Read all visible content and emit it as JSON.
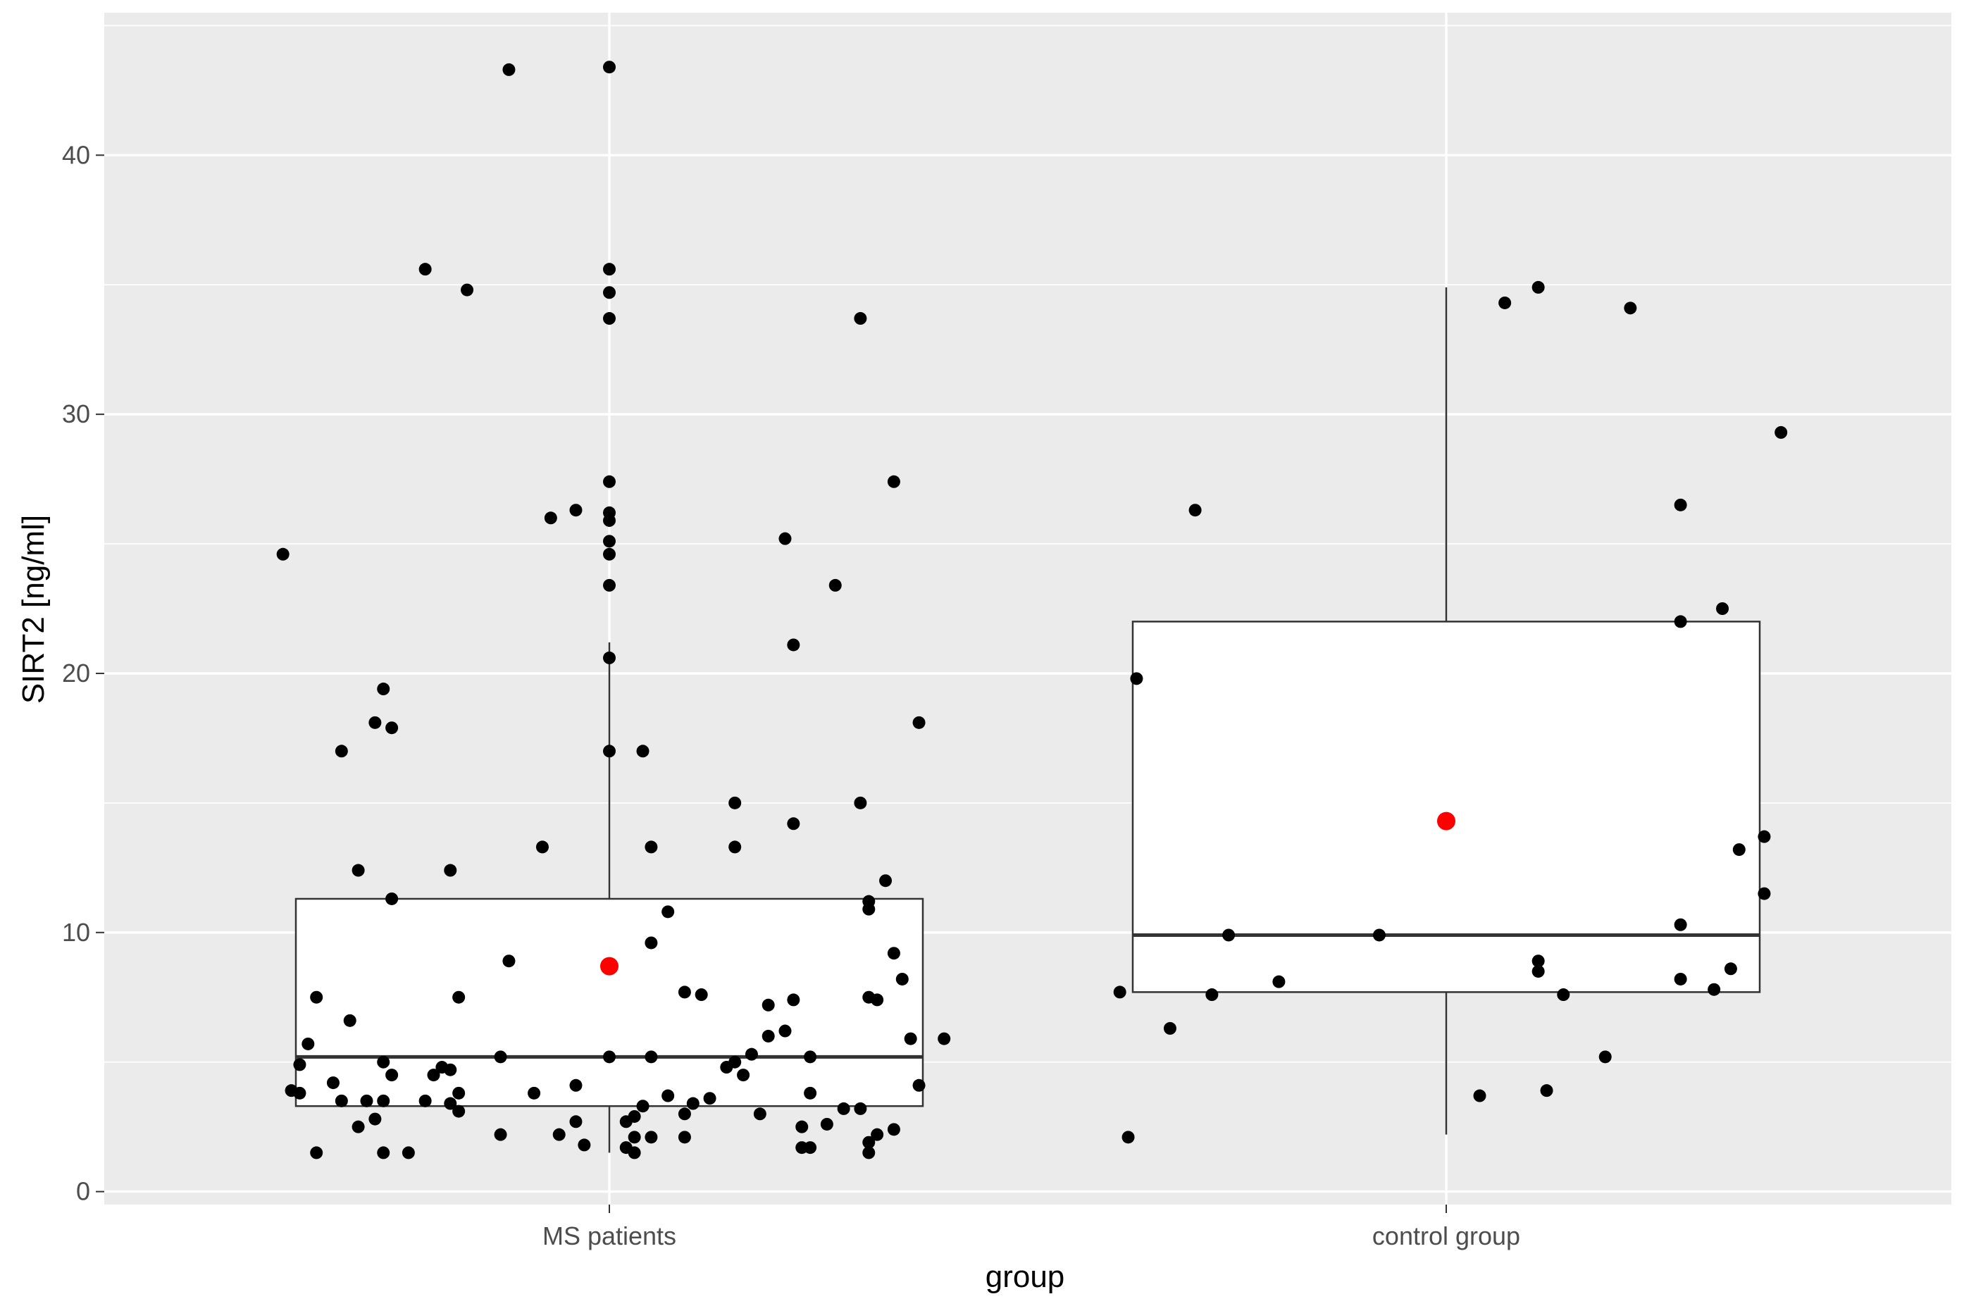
{
  "chart_data": {
    "type": "boxplot",
    "xlabel": "group",
    "ylabel": "SIRT2 [ng/ml]",
    "categories": [
      "MS patients",
      "control group"
    ],
    "ylim": [
      -0.5,
      45.5
    ],
    "yticks": [
      0,
      10,
      20,
      30,
      40
    ],
    "grid": true,
    "colors": {
      "panel_background": "#ebebeb",
      "grid_major": "#ffffff",
      "box_fill": "#ffffff",
      "box_line": "#333333",
      "points": "#000000",
      "mean_marker": "#ff0000"
    },
    "boxes": [
      {
        "name": "MS patients",
        "whisker_low": 1.5,
        "q1": 3.3,
        "median": 5.2,
        "q3": 11.3,
        "whisker_high": 21.2,
        "mean": 8.7
      },
      {
        "name": "control group",
        "whisker_low": 2.2,
        "q1": 7.7,
        "median": 9.9,
        "q3": 22.0,
        "whisker_high": 34.9,
        "mean": 14.3
      }
    ],
    "points": [
      {
        "group": "MS patients",
        "values": [
          {
            "jitter": -0.12,
            "y": 43.3
          },
          {
            "jitter": 0.0,
            "y": 43.4
          },
          {
            "jitter": -0.22,
            "y": 35.6
          },
          {
            "jitter": 0.0,
            "y": 35.6
          },
          {
            "jitter": -0.17,
            "y": 34.8
          },
          {
            "jitter": 0.0,
            "y": 34.7
          },
          {
            "jitter": 0.0,
            "y": 33.7
          },
          {
            "jitter": 0.3,
            "y": 33.7
          },
          {
            "jitter": 0.0,
            "y": 27.4
          },
          {
            "jitter": 0.34,
            "y": 27.4
          },
          {
            "jitter": -0.04,
            "y": 26.3
          },
          {
            "jitter": -0.07,
            "y": 26.0
          },
          {
            "jitter": 0.0,
            "y": 26.2
          },
          {
            "jitter": 0.0,
            "y": 25.9
          },
          {
            "jitter": 0.21,
            "y": 25.2
          },
          {
            "jitter": 0.0,
            "y": 25.1
          },
          {
            "jitter": -0.39,
            "y": 24.6
          },
          {
            "jitter": 0.0,
            "y": 24.6
          },
          {
            "jitter": 0.0,
            "y": 23.4
          },
          {
            "jitter": 0.27,
            "y": 23.4
          },
          {
            "jitter": 0.22,
            "y": 21.1
          },
          {
            "jitter": 0.0,
            "y": 20.6
          },
          {
            "jitter": -0.27,
            "y": 19.4
          },
          {
            "jitter": -0.28,
            "y": 18.1
          },
          {
            "jitter": -0.26,
            "y": 17.9
          },
          {
            "jitter": 0.37,
            "y": 18.1
          },
          {
            "jitter": -0.32,
            "y": 17.0
          },
          {
            "jitter": 0.0,
            "y": 17.0
          },
          {
            "jitter": 0.04,
            "y": 17.0
          },
          {
            "jitter": 0.15,
            "y": 15.0
          },
          {
            "jitter": 0.3,
            "y": 15.0
          },
          {
            "jitter": 0.22,
            "y": 14.2
          },
          {
            "jitter": -0.08,
            "y": 13.3
          },
          {
            "jitter": 0.05,
            "y": 13.3
          },
          {
            "jitter": 0.15,
            "y": 13.3
          },
          {
            "jitter": -0.3,
            "y": 12.4
          },
          {
            "jitter": -0.19,
            "y": 12.4
          },
          {
            "jitter": 0.33,
            "y": 12.0
          },
          {
            "jitter": -0.26,
            "y": 11.3
          },
          {
            "jitter": 0.31,
            "y": 11.2
          },
          {
            "jitter": 0.31,
            "y": 10.9
          },
          {
            "jitter": 0.07,
            "y": 10.8
          },
          {
            "jitter": 0.05,
            "y": 9.6
          },
          {
            "jitter": 0.34,
            "y": 9.2
          },
          {
            "jitter": -0.12,
            "y": 8.9
          },
          {
            "jitter": 0.35,
            "y": 8.2
          },
          {
            "jitter": 0.09,
            "y": 7.7
          },
          {
            "jitter": 0.11,
            "y": 7.6
          },
          {
            "jitter": -0.35,
            "y": 7.5
          },
          {
            "jitter": -0.18,
            "y": 7.5
          },
          {
            "jitter": 0.31,
            "y": 7.5
          },
          {
            "jitter": 0.32,
            "y": 7.4
          },
          {
            "jitter": 0.22,
            "y": 7.4
          },
          {
            "jitter": 0.19,
            "y": 7.2
          },
          {
            "jitter": -0.31,
            "y": 6.6
          },
          {
            "jitter": 0.21,
            "y": 6.2
          },
          {
            "jitter": 0.19,
            "y": 6.0
          },
          {
            "jitter": 0.36,
            "y": 5.9
          },
          {
            "jitter": 0.4,
            "y": 5.9
          },
          {
            "jitter": -0.36,
            "y": 5.7
          },
          {
            "jitter": -0.13,
            "y": 5.2
          },
          {
            "jitter": 0.0,
            "y": 5.2
          },
          {
            "jitter": 0.05,
            "y": 5.2
          },
          {
            "jitter": 0.17,
            "y": 5.3
          },
          {
            "jitter": 0.24,
            "y": 5.2
          },
          {
            "jitter": 0.15,
            "y": 5.0
          },
          {
            "jitter": -0.27,
            "y": 5.0
          },
          {
            "jitter": -0.37,
            "y": 4.9
          },
          {
            "jitter": -0.2,
            "y": 4.8
          },
          {
            "jitter": -0.19,
            "y": 4.7
          },
          {
            "jitter": 0.14,
            "y": 4.8
          },
          {
            "jitter": -0.26,
            "y": 4.5
          },
          {
            "jitter": -0.21,
            "y": 4.5
          },
          {
            "jitter": 0.16,
            "y": 4.5
          },
          {
            "jitter": -0.33,
            "y": 4.2
          },
          {
            "jitter": -0.04,
            "y": 4.1
          },
          {
            "jitter": 0.37,
            "y": 4.1
          },
          {
            "jitter": -0.38,
            "y": 3.9
          },
          {
            "jitter": -0.37,
            "y": 3.8
          },
          {
            "jitter": -0.18,
            "y": 3.8
          },
          {
            "jitter": -0.09,
            "y": 3.8
          },
          {
            "jitter": 0.24,
            "y": 3.8
          },
          {
            "jitter": 0.07,
            "y": 3.7
          },
          {
            "jitter": 0.12,
            "y": 3.6
          },
          {
            "jitter": -0.32,
            "y": 3.5
          },
          {
            "jitter": -0.29,
            "y": 3.5
          },
          {
            "jitter": -0.27,
            "y": 3.5
          },
          {
            "jitter": -0.22,
            "y": 3.5
          },
          {
            "jitter": -0.19,
            "y": 3.4
          },
          {
            "jitter": 0.1,
            "y": 3.4
          },
          {
            "jitter": 0.04,
            "y": 3.3
          },
          {
            "jitter": -0.18,
            "y": 3.1
          },
          {
            "jitter": 0.28,
            "y": 3.2
          },
          {
            "jitter": 0.3,
            "y": 3.2
          },
          {
            "jitter": 0.09,
            "y": 3.0
          },
          {
            "jitter": 0.18,
            "y": 3.0
          },
          {
            "jitter": 0.03,
            "y": 2.9
          },
          {
            "jitter": -0.28,
            "y": 2.8
          },
          {
            "jitter": 0.02,
            "y": 2.7
          },
          {
            "jitter": -0.04,
            "y": 2.7
          },
          {
            "jitter": 0.26,
            "y": 2.6
          },
          {
            "jitter": -0.3,
            "y": 2.5
          },
          {
            "jitter": 0.23,
            "y": 2.5
          },
          {
            "jitter": 0.34,
            "y": 2.4
          },
          {
            "jitter": -0.13,
            "y": 2.2
          },
          {
            "jitter": -0.06,
            "y": 2.2
          },
          {
            "jitter": 0.03,
            "y": 2.1
          },
          {
            "jitter": 0.05,
            "y": 2.1
          },
          {
            "jitter": 0.09,
            "y": 2.1
          },
          {
            "jitter": 0.32,
            "y": 2.2
          },
          {
            "jitter": 0.31,
            "y": 1.9
          },
          {
            "jitter": -0.03,
            "y": 1.8
          },
          {
            "jitter": 0.02,
            "y": 1.7
          },
          {
            "jitter": 0.23,
            "y": 1.7
          },
          {
            "jitter": 0.24,
            "y": 1.7
          },
          {
            "jitter": -0.35,
            "y": 1.5
          },
          {
            "jitter": -0.27,
            "y": 1.5
          },
          {
            "jitter": -0.24,
            "y": 1.5
          },
          {
            "jitter": 0.03,
            "y": 1.5
          },
          {
            "jitter": 0.31,
            "y": 1.5
          }
        ]
      },
      {
        "group": "control group",
        "values": [
          {
            "jitter": 0.11,
            "y": 34.9
          },
          {
            "jitter": 0.07,
            "y": 34.3
          },
          {
            "jitter": 0.22,
            "y": 34.1
          },
          {
            "jitter": 0.4,
            "y": 29.3
          },
          {
            "jitter": -0.3,
            "y": 26.3
          },
          {
            "jitter": 0.28,
            "y": 26.5
          },
          {
            "jitter": 0.33,
            "y": 22.5
          },
          {
            "jitter": 0.28,
            "y": 22.0
          },
          {
            "jitter": -0.37,
            "y": 19.8
          },
          {
            "jitter": 0.38,
            "y": 13.7
          },
          {
            "jitter": 0.35,
            "y": 13.2
          },
          {
            "jitter": 0.38,
            "y": 11.5
          },
          {
            "jitter": 0.28,
            "y": 10.3
          },
          {
            "jitter": -0.26,
            "y": 9.9
          },
          {
            "jitter": -0.08,
            "y": 9.9
          },
          {
            "jitter": 0.11,
            "y": 8.9
          },
          {
            "jitter": 0.11,
            "y": 8.5
          },
          {
            "jitter": 0.34,
            "y": 8.6
          },
          {
            "jitter": 0.28,
            "y": 8.2
          },
          {
            "jitter": -0.2,
            "y": 8.1
          },
          {
            "jitter": 0.32,
            "y": 7.8
          },
          {
            "jitter": -0.39,
            "y": 7.7
          },
          {
            "jitter": -0.28,
            "y": 7.6
          },
          {
            "jitter": 0.14,
            "y": 7.6
          },
          {
            "jitter": -0.33,
            "y": 6.3
          },
          {
            "jitter": 0.19,
            "y": 5.2
          },
          {
            "jitter": 0.12,
            "y": 3.9
          },
          {
            "jitter": 0.04,
            "y": 3.7
          },
          {
            "jitter": -0.38,
            "y": 2.1
          }
        ]
      }
    ]
  }
}
